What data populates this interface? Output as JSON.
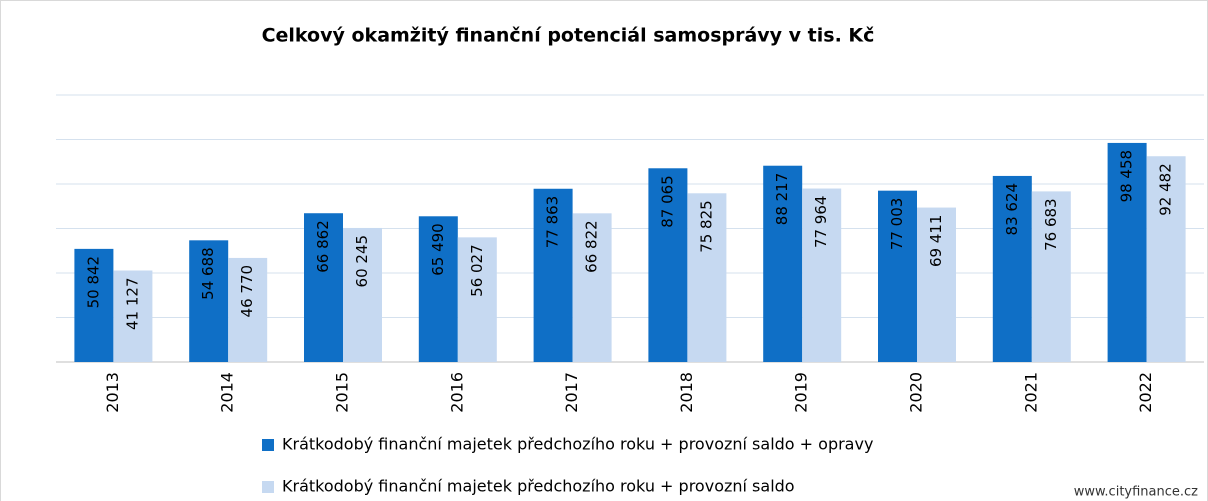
{
  "chart_data": {
    "type": "bar",
    "title": "Celkový okamžitý finanční potenciál samosprávy v tis. Kč",
    "categories": [
      "2013",
      "2014",
      "2015",
      "2016",
      "2017",
      "2018",
      "2019",
      "2020",
      "2021",
      "2022"
    ],
    "series": [
      {
        "name": "Krátkodobý finanční majetek předchozího roku + provozní saldo + opravy",
        "color": "#0f6fc6",
        "values": [
          50842,
          54688,
          66862,
          65490,
          77863,
          87065,
          88217,
          77003,
          83624,
          98458
        ],
        "value_labels": [
          "50 842",
          "54 688",
          "66 862",
          "65 490",
          "77 863",
          "87 065",
          "88 217",
          "77 003",
          "83 624",
          "98 458"
        ]
      },
      {
        "name": "Krátkodobý finanční majetek předchozího roku + provozní saldo",
        "color": "#c6d9f1",
        "values": [
          41127,
          46770,
          60245,
          56027,
          66822,
          75825,
          77964,
          69411,
          76683,
          92482
        ],
        "value_labels": [
          "41 127",
          "46 770",
          "60 245",
          "56 027",
          "66 822",
          "75 825",
          "77 964",
          "69 411",
          "76 683",
          "92 482"
        ]
      }
    ],
    "ylim": [
      0,
      120000
    ],
    "yticks": [
      0,
      20000,
      40000,
      60000,
      80000,
      100000,
      120000
    ],
    "grid": true,
    "source": "www.cityfinance.cz"
  }
}
